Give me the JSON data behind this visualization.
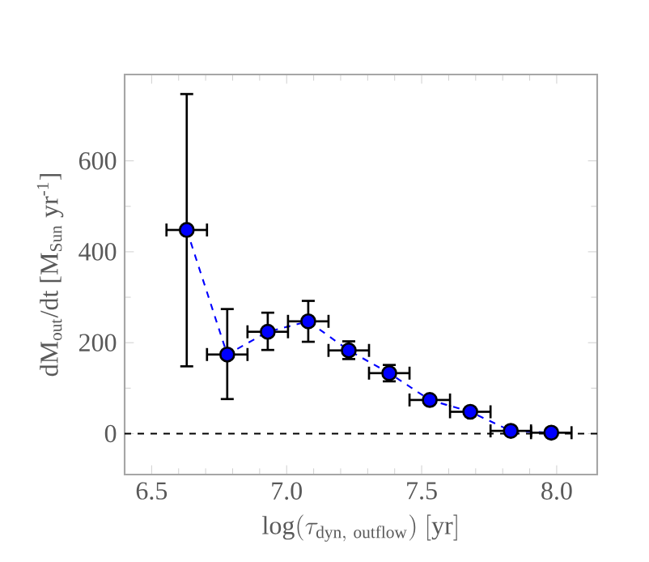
{
  "chart_data": {
    "type": "line",
    "xlabel": "\\mathrm{log}(\\tau_{\\mathrm{dyn,\\ outflow}})\\ [\\mathrm{yr}]",
    "ylabel": "dM$_{out}$/dt [M$_{Sun}$ yr$^{-1}$]",
    "xlim": [
      6.4,
      8.15
    ],
    "ylim": [
      -90,
      790
    ],
    "xticks": [
      6.5,
      {
        "value": 7.0,
        "label": "7.0"
      },
      7.5,
      {
        "value": 8.0,
        "label": "8.0"
      }
    ],
    "yticks": [
      0,
      200,
      400,
      600
    ],
    "series": [
      {
        "color": "#0000ff",
        "line_style": "dashed",
        "marker": "circle",
        "x": [
          6.63,
          6.78,
          6.93,
          7.08,
          7.23,
          7.38,
          7.53,
          7.68,
          7.83,
          7.98
        ],
        "values": [
          448,
          174,
          224,
          247,
          183,
          133,
          74,
          48,
          6,
          2
        ],
        "errors": [
          [
            148,
            747
          ],
          [
            76,
            274
          ],
          [
            184,
            266
          ],
          [
            202,
            292
          ],
          [
            164,
            203
          ],
          [
            115,
            151
          ],
          null,
          null,
          null,
          null
        ],
        "xerrors": [
          0.075,
          0.075,
          0.075,
          0.075,
          0.075,
          0.075,
          0.075,
          0.075,
          0.075,
          0.075
        ]
      }
    ],
    "ref_lines": [
      {
        "axis": "y",
        "value": 0,
        "color": "#000000",
        "line_style": "dashed"
      }
    ],
    "grid": false
  }
}
